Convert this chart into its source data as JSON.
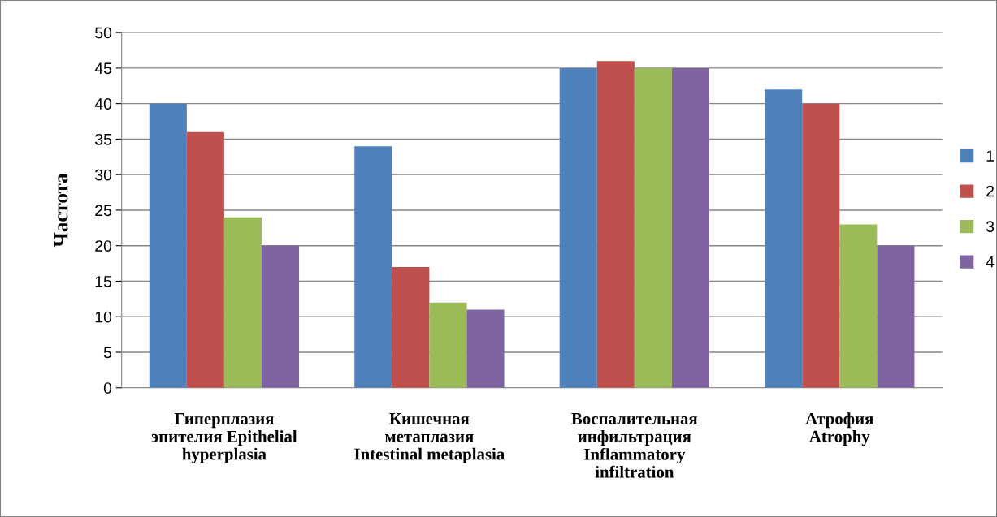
{
  "chart_data": {
    "type": "bar",
    "ylabel": "Частота",
    "categories": [
      "Гиперплазия\nэпителия Epithelial\nhyperplasia",
      "Кишечная\nметаплазия\nIntestinal metaplasia",
      "Воспалительная\nинфильтрация\nInflammatory\ninfiltration",
      "Атрофия\nAtrophy"
    ],
    "series": [
      {
        "name": "1",
        "color": "#4f81bd",
        "values": [
          40,
          34,
          45,
          42
        ]
      },
      {
        "name": "2",
        "color": "#c0504d",
        "values": [
          36,
          17,
          46,
          40
        ]
      },
      {
        "name": "3",
        "color": "#9bbb59",
        "values": [
          24,
          12,
          45,
          23
        ]
      },
      {
        "name": "4",
        "color": "#8064a2",
        "values": [
          20,
          11,
          45,
          20
        ]
      }
    ],
    "ylim": [
      0,
      50
    ],
    "yticks": [
      0,
      5,
      10,
      15,
      20,
      25,
      30,
      35,
      40,
      45,
      50
    ],
    "grid": "y",
    "legend": "right"
  }
}
